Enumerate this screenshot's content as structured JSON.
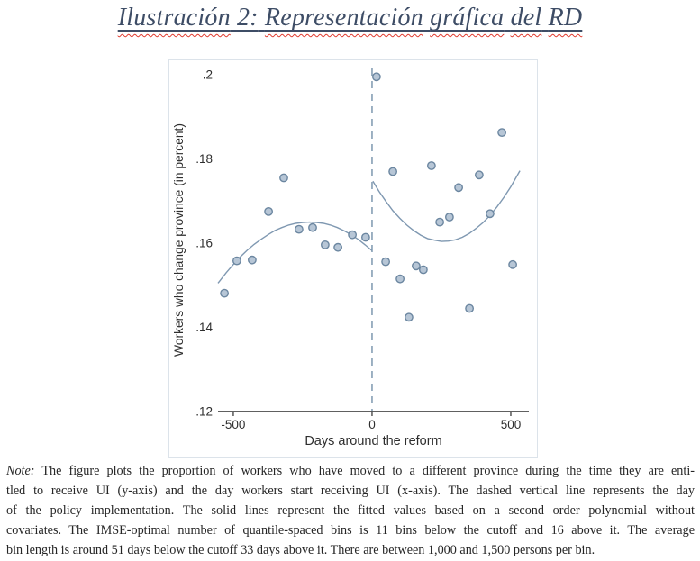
{
  "title": {
    "w1": "Ilustración",
    "s1": "2:",
    "w2": "Representación",
    "w3": "gráfica",
    "w4": "del",
    "w5": "RD"
  },
  "note": {
    "label": "Note:",
    "lines": [
      "The figure plots the proportion of workers who have moved to a different province during the time they are enti-",
      "tled to receive UI (y-axis) and the day workers start receiving UI (x-axis). The dashed vertical line represents the day",
      "of the policy implementation. The solid lines represent the fitted values based on a second order polynomial without",
      "covariates. The IMSE-optimal number of quantile-spaced bins is 11 bins below the cutoff and 16 above it. The average",
      "bin length is around 51 days below the cutoff 33 days above it. There are between 1,000 and 1,500 persons per bin."
    ]
  },
  "chart_data": {
    "type": "scatter",
    "title": "",
    "xlabel": "Days around the reform",
    "ylabel": "Workers who change province (in percent)",
    "xlim": [
      -555,
      565
    ],
    "ylim": [
      0.12,
      0.2015
    ],
    "grid": false,
    "legend": "none",
    "xticks": [
      {
        "v": -500,
        "label": "-500"
      },
      {
        "v": 0,
        "label": "0"
      },
      {
        "v": 500,
        "label": "500"
      }
    ],
    "yticks": [
      {
        "v": 0.2,
        "label": ".2"
      },
      {
        "v": 0.18,
        "label": ".18"
      },
      {
        "v": 0.16,
        "label": ".16"
      },
      {
        "v": 0.14,
        "label": ".14"
      },
      {
        "v": 0.12,
        "label": ".12"
      }
    ],
    "cutoff_line": {
      "x": 0,
      "style": "dashed"
    },
    "series": [
      {
        "name": "binned means below cutoff",
        "type": "scatter",
        "points": [
          [
            -532,
            0.1481
          ],
          [
            -487,
            0.1558
          ],
          [
            -432,
            0.156
          ],
          [
            -373,
            0.1675
          ],
          [
            -318,
            0.1755
          ],
          [
            -263,
            0.1633
          ],
          [
            -214,
            0.1637
          ],
          [
            -169,
            0.1596
          ],
          [
            -123,
            0.159
          ],
          [
            -71,
            0.162
          ],
          [
            -23,
            0.1614
          ]
        ]
      },
      {
        "name": "binned means above cutoff",
        "type": "scatter",
        "points": [
          [
            16,
            0.1995
          ],
          [
            49,
            0.1556
          ],
          [
            75,
            0.177
          ],
          [
            101,
            0.1515
          ],
          [
            133,
            0.1424
          ],
          [
            159,
            0.1546
          ],
          [
            185,
            0.1537
          ],
          [
            214,
            0.1784
          ],
          [
            244,
            0.165
          ],
          [
            279,
            0.1662
          ],
          [
            312,
            0.1732
          ],
          [
            351,
            0.1445
          ],
          [
            386,
            0.1762
          ],
          [
            425,
            0.167
          ],
          [
            468,
            0.1863
          ],
          [
            507,
            0.1549
          ]
        ]
      },
      {
        "name": "second order polynomial fit below cutoff",
        "type": "line",
        "points": [
          [
            -555,
            0.1505
          ],
          [
            -525,
            0.153
          ],
          [
            -500,
            0.1549
          ],
          [
            -475,
            0.1567
          ],
          [
            -450,
            0.1583
          ],
          [
            -425,
            0.1597
          ],
          [
            -400,
            0.1609
          ],
          [
            -375,
            0.162
          ],
          [
            -350,
            0.163
          ],
          [
            -325,
            0.1637
          ],
          [
            -300,
            0.1643
          ],
          [
            -275,
            0.1647
          ],
          [
            -250,
            0.1649
          ],
          [
            -225,
            0.165
          ],
          [
            -200,
            0.1649
          ],
          [
            -175,
            0.1647
          ],
          [
            -150,
            0.1643
          ],
          [
            -125,
            0.1637
          ],
          [
            -100,
            0.1629
          ],
          [
            -75,
            0.162
          ],
          [
            -50,
            0.1609
          ],
          [
            -25,
            0.1596
          ],
          [
            0,
            0.1582
          ]
        ]
      },
      {
        "name": "second order polynomial fit above cutoff",
        "type": "line",
        "points": [
          [
            3,
            0.1747
          ],
          [
            25,
            0.1723
          ],
          [
            50,
            0.1699
          ],
          [
            75,
            0.1677
          ],
          [
            100,
            0.1659
          ],
          [
            125,
            0.1643
          ],
          [
            150,
            0.163
          ],
          [
            175,
            0.1619
          ],
          [
            200,
            0.1611
          ],
          [
            225,
            0.1607
          ],
          [
            250,
            0.1604
          ],
          [
            275,
            0.1605
          ],
          [
            300,
            0.1608
          ],
          [
            325,
            0.1614
          ],
          [
            350,
            0.1623
          ],
          [
            375,
            0.1635
          ],
          [
            400,
            0.1649
          ],
          [
            425,
            0.1666
          ],
          [
            450,
            0.1686
          ],
          [
            475,
            0.1709
          ],
          [
            500,
            0.1734
          ],
          [
            533,
            0.1772
          ]
        ]
      }
    ],
    "colors": {
      "marker_fill": "#b7c6d6",
      "marker_stroke": "#6b86a0",
      "fit_line": "#7f98b1",
      "cutoff_line": "#93a9bd",
      "axis": "#4a4a4a",
      "text": "#2e2e2e"
    }
  },
  "page": {
    "title_color": "#3e4d66",
    "squiggle_color": "#e03a2e",
    "figure_border": "#dce3ea"
  }
}
